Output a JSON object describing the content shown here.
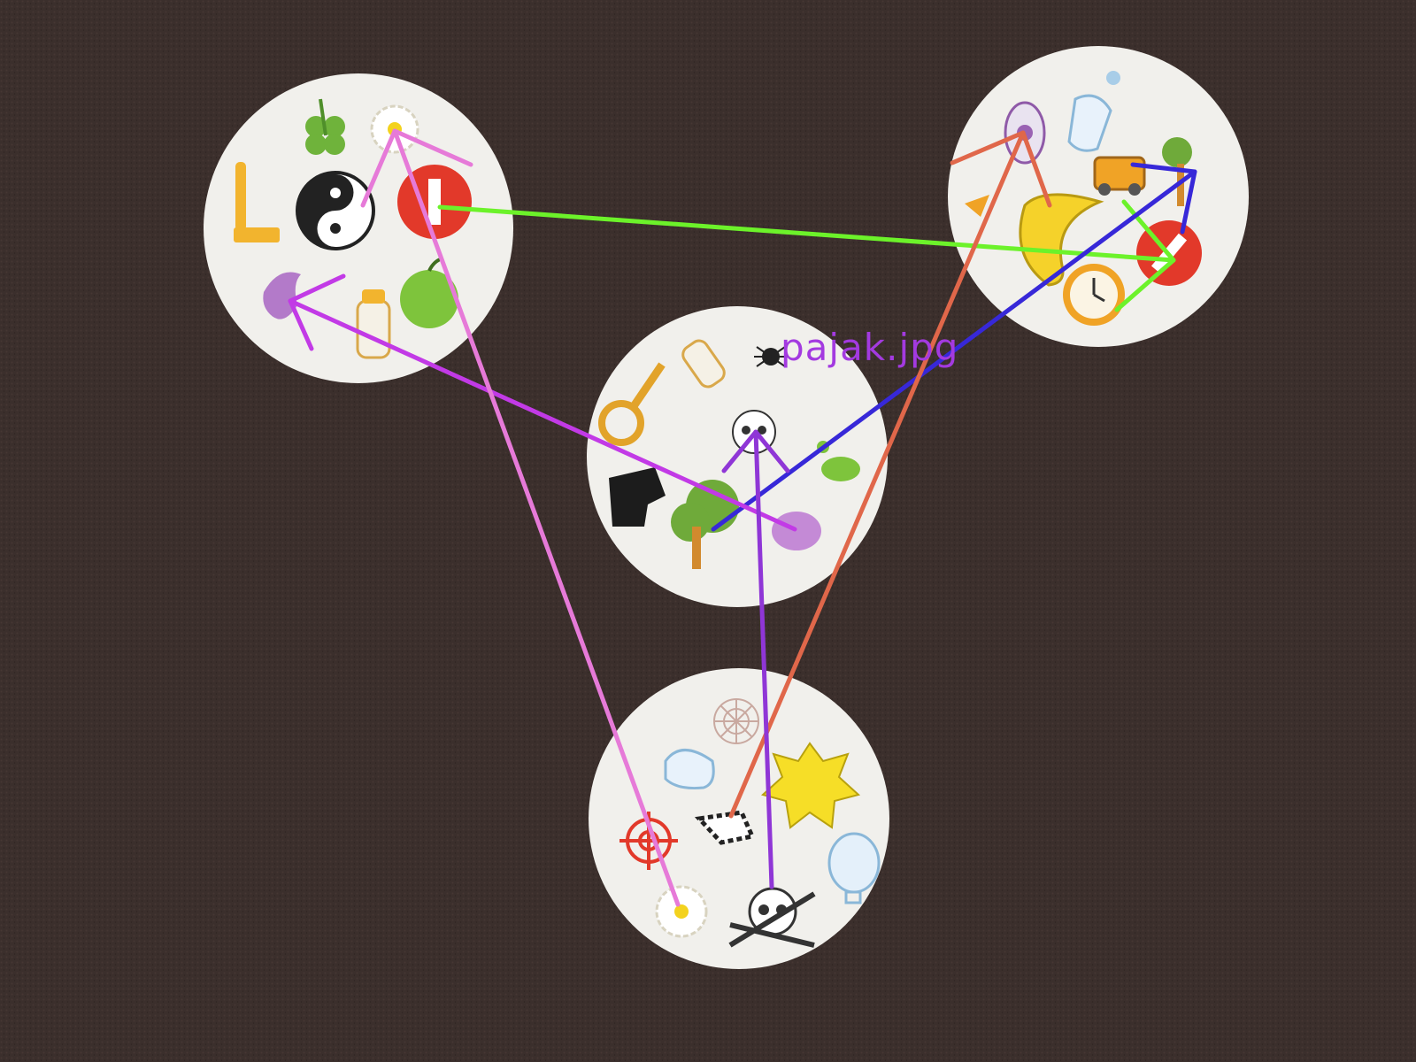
{
  "caption": "pajak.jpg",
  "colors": {
    "table": "#3a2e2b",
    "card": "#f1f0ec",
    "caption": "#a33ae0",
    "match_green": "#6cf22a",
    "match_blue": "#3728d8",
    "match_orange": "#e0674a",
    "match_violet": "#c23ae6",
    "match_pink": "#e67ad8",
    "match_purple": "#8f36d6"
  },
  "cards": [
    {
      "name": "card-top-left",
      "symbols": [
        "clover-icon",
        "daisy-icon",
        "hammer-icon",
        "yin-yang-icon",
        "stop-sign-icon",
        "dragon-icon",
        "baby-bottle-icon",
        "apple-icon"
      ]
    },
    {
      "name": "card-top-right",
      "symbols": [
        "eye-icon",
        "ghost-icon",
        "car-icon",
        "tree-icon",
        "bird-icon",
        "moon-icon",
        "stop-sign-icon",
        "clock-icon"
      ]
    },
    {
      "name": "card-center",
      "symbols": [
        "key-icon",
        "baby-bottle-icon",
        "spider-icon",
        "skull-icon",
        "footprint-icon",
        "knight-icon",
        "tree-icon",
        "bird-icon"
      ]
    },
    {
      "name": "card-bottom",
      "symbols": [
        "web-icon",
        "ghost-icon",
        "sun-icon",
        "target-icon",
        "zebra-icon",
        "balloon-icon",
        "daisy-icon",
        "skull-icon"
      ]
    }
  ],
  "matches": [
    {
      "name": "match-stop-sign",
      "color": "#6cf22a"
    },
    {
      "name": "match-tree",
      "color": "#3728d8"
    },
    {
      "name": "match-dragon-bird",
      "color": "#c23ae6"
    },
    {
      "name": "match-daisy",
      "color": "#e67ad8"
    },
    {
      "name": "match-eye-zebra",
      "color": "#e0674a"
    },
    {
      "name": "match-skull",
      "color": "#8f36d6"
    }
  ]
}
